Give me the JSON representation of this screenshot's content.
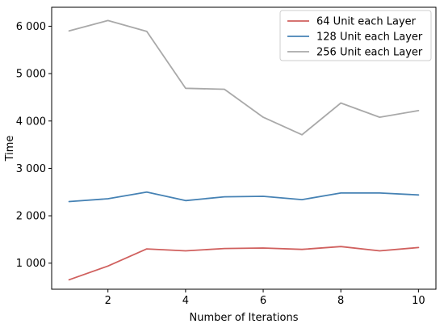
{
  "chart_data": {
    "type": "line",
    "title": "",
    "xlabel": "Number of Iterations",
    "ylabel": "Time",
    "xlim": [
      0.55,
      10.45
    ],
    "ylim": [
      450,
      6400
    ],
    "xticks": [
      2,
      4,
      6,
      8,
      10
    ],
    "xtick_labels": [
      "2",
      "4",
      "6",
      "8",
      "10"
    ],
    "yticks": [
      1000,
      2000,
      3000,
      4000,
      5000,
      6000
    ],
    "ytick_labels": [
      "1 000",
      "2 000",
      "3 000",
      "4 000",
      "5 000",
      "6 000"
    ],
    "grid": false,
    "legend_position": "top-right",
    "x": [
      1,
      2,
      3,
      4,
      5,
      6,
      7,
      8,
      9,
      10
    ],
    "series": [
      {
        "name": "64 Unit each Layer",
        "color": "#d0605e",
        "values": [
          650,
          940,
          1300,
          1260,
          1310,
          1320,
          1290,
          1350,
          1260,
          1330
        ]
      },
      {
        "name": "128 Unit each Layer",
        "color": "#4682b4",
        "values": [
          2300,
          2360,
          2500,
          2320,
          2400,
          2410,
          2340,
          2480,
          2480,
          2440
        ]
      },
      {
        "name": "256 Unit each Layer",
        "color": "#a9a9a9",
        "values": [
          5900,
          6120,
          5890,
          4690,
          4670,
          4080,
          3710,
          4380,
          4080,
          4220
        ]
      }
    ]
  }
}
